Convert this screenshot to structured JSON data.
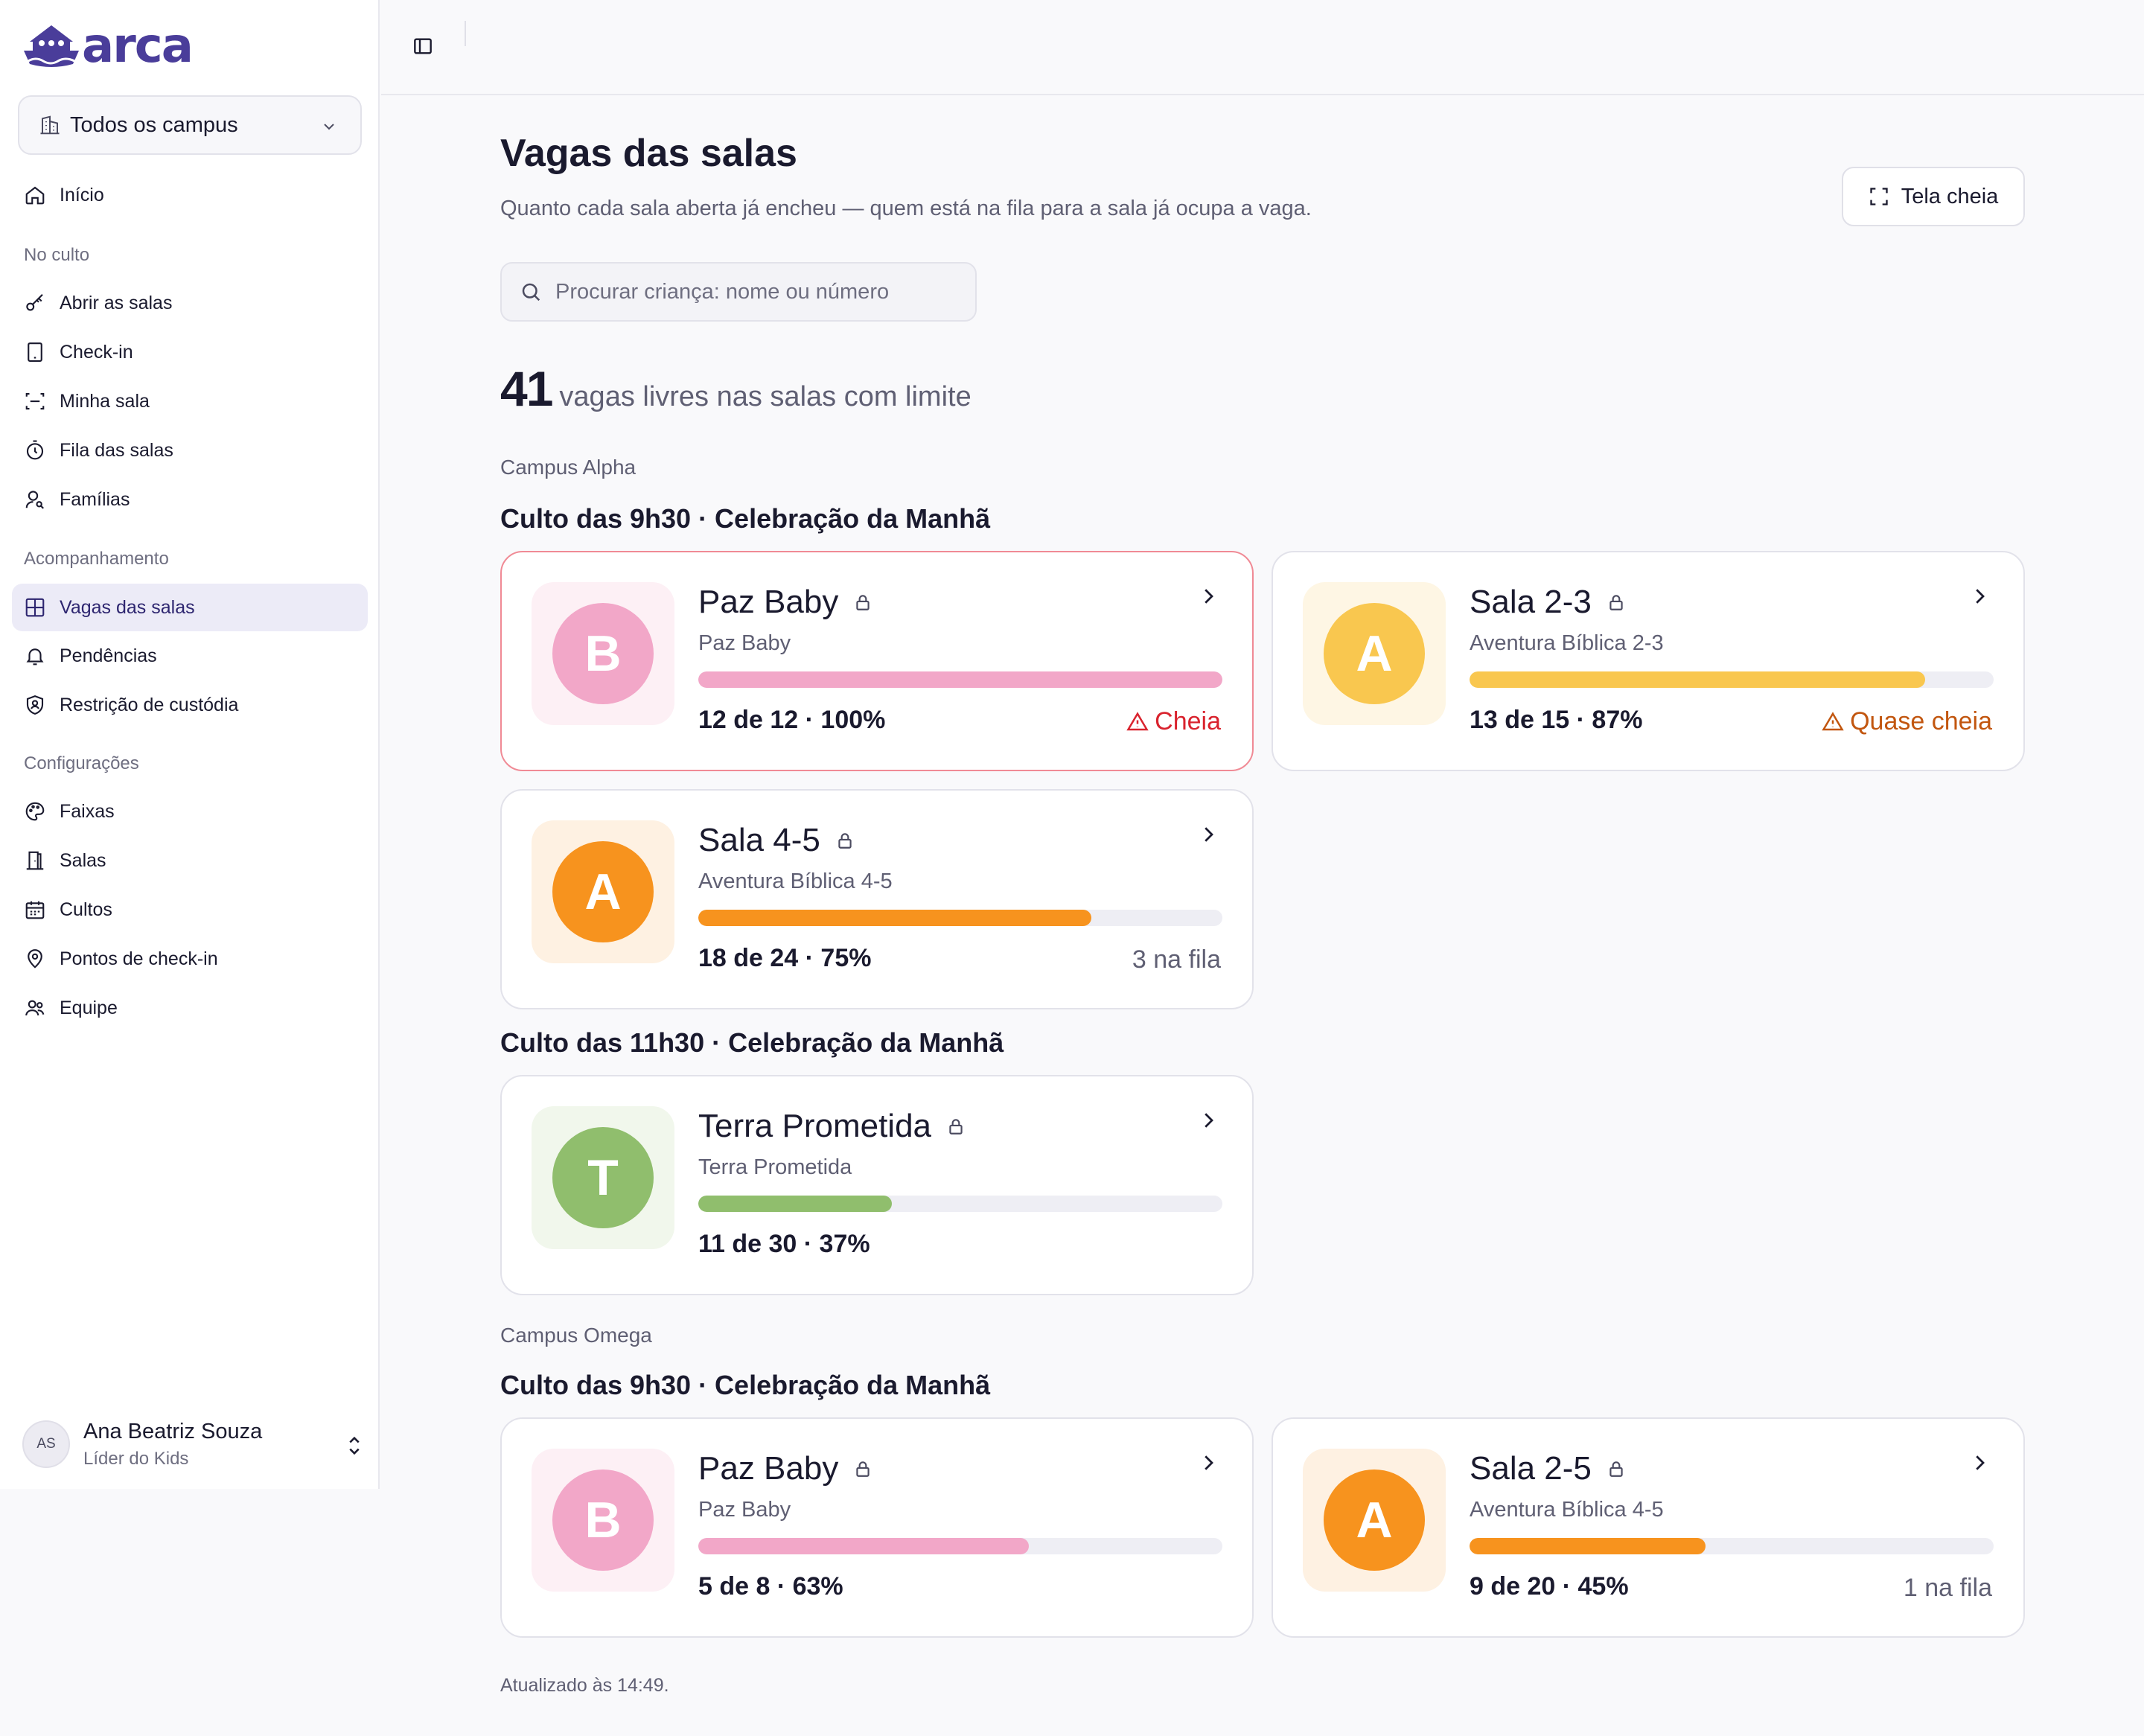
{
  "brand": {
    "name": "arca",
    "color": "#4a3d9a"
  },
  "sidebar": {
    "campus_select": {
      "value": "Todos os campus",
      "icon": "building-icon"
    },
    "home": {
      "label": "Início",
      "icon": "home-icon"
    },
    "groups": [
      {
        "label": "No culto",
        "items": [
          {
            "label": "Abrir as salas",
            "icon": "key-icon"
          },
          {
            "label": "Check-in",
            "icon": "tablet-icon"
          },
          {
            "label": "Minha sala",
            "icon": "scan-icon"
          },
          {
            "label": "Fila das salas",
            "icon": "timer-icon"
          },
          {
            "label": "Famílias",
            "icon": "user-search-icon"
          }
        ]
      },
      {
        "label": "Acompanhamento",
        "items": [
          {
            "label": "Vagas das salas",
            "icon": "grid-icon",
            "active": true
          },
          {
            "label": "Pendências",
            "icon": "bell-icon"
          },
          {
            "label": "Restrição de custódia",
            "icon": "shield-user-icon"
          }
        ]
      },
      {
        "label": "Configurações",
        "items": [
          {
            "label": "Faixas",
            "icon": "palette-icon"
          },
          {
            "label": "Salas",
            "icon": "door-icon"
          },
          {
            "label": "Cultos",
            "icon": "calendar-icon"
          },
          {
            "label": "Pontos de check-in",
            "icon": "map-pin-icon"
          },
          {
            "label": "Equipe",
            "icon": "users-icon"
          }
        ]
      }
    ],
    "user": {
      "initials": "AS",
      "name": "Ana Beatriz Souza",
      "role": "Líder do Kids"
    }
  },
  "main": {
    "title": "Vagas das salas",
    "subtitle": "Quanto cada sala aberta já encheu — quem está na fila para a sala já ocupa a vaga.",
    "fullscreen_label": "Tela cheia",
    "search_placeholder": "Procurar criança: nome ou número",
    "summary": {
      "number": "41",
      "label": "vagas livres nas salas com limite"
    },
    "campuses": [
      {
        "label": "Campus Alpha",
        "services": [
          {
            "title": "Culto das 9h30 · Celebração da Manhã",
            "rooms": [
              {
                "name": "Paz Baby",
                "subtitle": "Paz Baby",
                "letter": "B",
                "count": "12 de 12 · 100%",
                "fill": 1.0,
                "status": "Cheia",
                "status_type": "full",
                "color": "#f2a7c8",
                "tile": "#fdf0f5"
              },
              {
                "name": "Sala 2-3",
                "subtitle": "Aventura Bíblica 2-3",
                "letter": "A",
                "count": "13 de 15 · 87%",
                "fill": 0.87,
                "status": "Quase cheia",
                "status_type": "almost",
                "color": "#f9c74f",
                "tile": "#fef6e4"
              },
              {
                "name": "Sala 4-5",
                "subtitle": "Aventura Bíblica 4-5",
                "letter": "A",
                "count": "18 de 24 · 75%",
                "fill": 0.75,
                "status": "3 na fila",
                "status_type": "queue",
                "color": "#f7931e",
                "tile": "#fef1e2"
              }
            ]
          },
          {
            "title": "Culto das 11h30 · Celebração da Manhã",
            "rooms": [
              {
                "name": "Terra Prometida",
                "subtitle": "Terra Prometida",
                "letter": "T",
                "count": "11 de 30 · 37%",
                "fill": 0.37,
                "status": "",
                "status_type": "none",
                "color": "#90be6d",
                "tile": "#f1f7ec"
              }
            ]
          }
        ]
      },
      {
        "label": "Campus Omega",
        "services": [
          {
            "title": "Culto das 9h30 · Celebração da Manhã",
            "rooms": [
              {
                "name": "Paz Baby",
                "subtitle": "Paz Baby",
                "letter": "B",
                "count": "5 de 8 · 63%",
                "fill": 0.63,
                "status": "",
                "status_type": "none",
                "color": "#f2a7c8",
                "tile": "#fdf0f5"
              },
              {
                "name": "Sala 2-5",
                "subtitle": "Aventura Bíblica 4-5",
                "letter": "A",
                "count": "9 de 20 · 45%",
                "fill": 0.45,
                "status": "1 na fila",
                "status_type": "queue",
                "color": "#f7931e",
                "tile": "#fef1e2"
              }
            ]
          }
        ]
      }
    ],
    "updated": "Atualizado às 14:49."
  },
  "colors": {
    "full": "#d9232e",
    "almost": "#c2560f",
    "queue": "#5f5f73"
  }
}
